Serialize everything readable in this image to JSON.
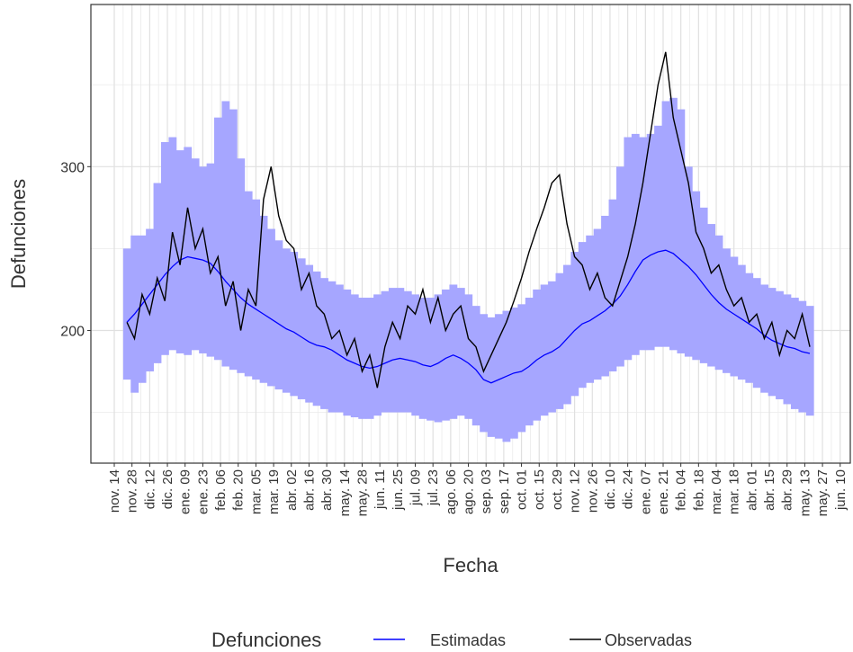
{
  "chart_data": {
    "type": "line",
    "xlabel": "Fecha",
    "ylabel": "Defunciones",
    "legend_title": "Defunciones",
    "grid": true,
    "xlim": [
      -18.5,
      582
    ],
    "ylim": [
      119,
      399
    ],
    "yticks": [
      200,
      300
    ],
    "yminor": [
      150,
      250,
      350
    ],
    "xticks": [
      {
        "value": 0,
        "label": "nov. 14"
      },
      {
        "value": 14,
        "label": "nov. 28"
      },
      {
        "value": 28,
        "label": "dic. 12"
      },
      {
        "value": 42,
        "label": "dic. 26"
      },
      {
        "value": 56,
        "label": "ene. 09"
      },
      {
        "value": 70,
        "label": "ene. 23"
      },
      {
        "value": 84,
        "label": "feb. 06"
      },
      {
        "value": 98,
        "label": "feb. 20"
      },
      {
        "value": 112,
        "label": "mar. 05"
      },
      {
        "value": 126,
        "label": "mar. 19"
      },
      {
        "value": 140,
        "label": "abr. 02"
      },
      {
        "value": 154,
        "label": "abr. 16"
      },
      {
        "value": 168,
        "label": "abr. 30"
      },
      {
        "value": 182,
        "label": "may. 14"
      },
      {
        "value": 196,
        "label": "may. 28"
      },
      {
        "value": 210,
        "label": "jun. 11"
      },
      {
        "value": 224,
        "label": "jun. 25"
      },
      {
        "value": 238,
        "label": "jul. 09"
      },
      {
        "value": 252,
        "label": "jul. 23"
      },
      {
        "value": 266,
        "label": "ago. 06"
      },
      {
        "value": 280,
        "label": "ago. 20"
      },
      {
        "value": 294,
        "label": "sep. 03"
      },
      {
        "value": 308,
        "label": "sep. 17"
      },
      {
        "value": 322,
        "label": "oct. 01"
      },
      {
        "value": 336,
        "label": "oct. 15"
      },
      {
        "value": 350,
        "label": "oct. 29"
      },
      {
        "value": 364,
        "label": "nov. 12"
      },
      {
        "value": 378,
        "label": "nov. 26"
      },
      {
        "value": 392,
        "label": "dic. 10"
      },
      {
        "value": 406,
        "label": "dic. 24"
      },
      {
        "value": 420,
        "label": "ene. 07"
      },
      {
        "value": 434,
        "label": "ene. 21"
      },
      {
        "value": 448,
        "label": "feb. 04"
      },
      {
        "value": 462,
        "label": "feb. 18"
      },
      {
        "value": 476,
        "label": "mar. 04"
      },
      {
        "value": 490,
        "label": "mar. 18"
      },
      {
        "value": 504,
        "label": "abr. 01"
      },
      {
        "value": 518,
        "label": "abr. 15"
      },
      {
        "value": 532,
        "label": "abr. 29"
      },
      {
        "value": 546,
        "label": "may. 13"
      },
      {
        "value": 560,
        "label": "may. 27"
      },
      {
        "value": 574,
        "label": "jun. 10"
      }
    ],
    "x": [
      10,
      16,
      22,
      28,
      34,
      40,
      46,
      52,
      58,
      64,
      70,
      76,
      82,
      88,
      94,
      100,
      106,
      112,
      118,
      124,
      130,
      136,
      142,
      148,
      154,
      160,
      166,
      172,
      178,
      184,
      190,
      196,
      202,
      208,
      214,
      220,
      226,
      232,
      238,
      244,
      250,
      256,
      262,
      268,
      274,
      280,
      286,
      292,
      298,
      304,
      310,
      316,
      322,
      328,
      334,
      340,
      346,
      352,
      358,
      364,
      370,
      376,
      382,
      388,
      394,
      400,
      406,
      412,
      418,
      424,
      430,
      436,
      442,
      448,
      454,
      460,
      466,
      472,
      478,
      484,
      490,
      496,
      502,
      508,
      514,
      520,
      526,
      532,
      538,
      544,
      550
    ],
    "band": {
      "color": "#a6a6ff",
      "lower": [
        170,
        162,
        168,
        175,
        180,
        185,
        188,
        186,
        185,
        188,
        186,
        184,
        182,
        178,
        176,
        174,
        172,
        170,
        168,
        166,
        164,
        162,
        160,
        158,
        156,
        154,
        152,
        150,
        150,
        148,
        147,
        146,
        146,
        148,
        150,
        150,
        150,
        150,
        148,
        146,
        145,
        144,
        145,
        146,
        148,
        146,
        142,
        138,
        135,
        134,
        132,
        134,
        138,
        142,
        145,
        148,
        150,
        152,
        155,
        160,
        165,
        168,
        170,
        172,
        175,
        178,
        182,
        185,
        188,
        188,
        190,
        190,
        188,
        186,
        184,
        182,
        180,
        178,
        176,
        174,
        172,
        170,
        168,
        165,
        162,
        160,
        158,
        155,
        152,
        150,
        148
      ],
      "upper": [
        250,
        258,
        258,
        262,
        290,
        315,
        318,
        310,
        312,
        305,
        300,
        302,
        330,
        340,
        335,
        305,
        285,
        280,
        270,
        262,
        255,
        250,
        248,
        244,
        240,
        236,
        232,
        230,
        228,
        225,
        222,
        220,
        220,
        222,
        224,
        226,
        226,
        224,
        222,
        220,
        220,
        222,
        225,
        228,
        226,
        222,
        215,
        210,
        208,
        210,
        212,
        214,
        216,
        220,
        225,
        228,
        230,
        235,
        240,
        248,
        254,
        258,
        262,
        270,
        280,
        300,
        318,
        320,
        318,
        320,
        325,
        340,
        342,
        335,
        300,
        285,
        275,
        265,
        258,
        250,
        245,
        240,
        235,
        232,
        228,
        226,
        224,
        222,
        220,
        218,
        215
      ]
    },
    "series": [
      {
        "name": "Estimadas",
        "color": "#0000ff",
        "values": [
          205,
          210,
          216,
          222,
          228,
          234,
          239,
          243,
          245,
          244,
          243,
          241,
          236,
          230,
          225,
          220,
          216,
          213,
          210,
          207,
          204,
          201,
          199,
          196,
          193,
          191,
          190,
          188,
          185,
          182,
          180,
          178,
          177,
          178,
          180,
          182,
          183,
          182,
          181,
          179,
          178,
          180,
          183,
          185,
          183,
          180,
          176,
          170,
          168,
          170,
          172,
          174,
          175,
          178,
          182,
          185,
          187,
          190,
          195,
          200,
          204,
          206,
          209,
          212,
          216,
          221,
          228,
          236,
          243,
          246,
          248,
          249,
          247,
          243,
          239,
          234,
          228,
          222,
          217,
          213,
          210,
          207,
          204,
          201,
          197,
          194,
          192,
          190,
          189,
          187,
          186
        ]
      },
      {
        "name": "Observadas",
        "color": "#000000",
        "values": [
          205,
          195,
          222,
          210,
          232,
          218,
          260,
          240,
          275,
          250,
          262,
          235,
          245,
          215,
          230,
          200,
          225,
          215,
          280,
          300,
          270,
          255,
          250,
          225,
          235,
          215,
          210,
          195,
          200,
          185,
          195,
          175,
          185,
          165,
          190,
          205,
          195,
          215,
          210,
          225,
          205,
          220,
          200,
          210,
          215,
          195,
          190,
          175,
          185,
          195,
          205,
          218,
          232,
          248,
          262,
          275,
          290,
          295,
          265,
          245,
          240,
          225,
          235,
          220,
          215,
          230,
          245,
          265,
          290,
          320,
          350,
          370,
          330,
          310,
          290,
          260,
          250,
          235,
          240,
          225,
          215,
          220,
          205,
          210,
          195,
          205,
          185,
          200,
          195,
          210,
          190
        ]
      }
    ]
  }
}
